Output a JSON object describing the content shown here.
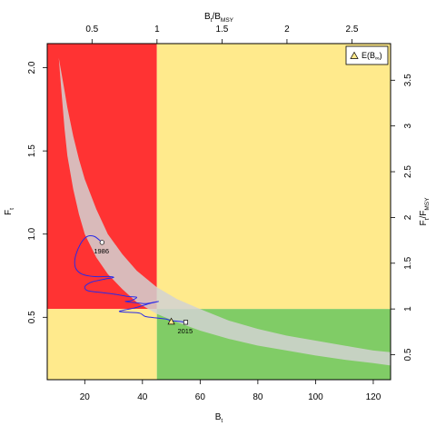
{
  "chart_data": {
    "type": "line",
    "axes": {
      "bottom": {
        "label": "B",
        "label_sub": "t",
        "range": [
          7,
          126
        ],
        "ticks": [
          20,
          40,
          60,
          80,
          100,
          120
        ]
      },
      "left": {
        "label": "F",
        "label_sub": "t",
        "range": [
          0.125,
          2.145
        ],
        "ticks": [
          0.5,
          1.0,
          1.5,
          2.0
        ]
      },
      "top": {
        "label": "B",
        "label_sub": "t",
        "label_mid": "/B",
        "label_sub2": "MSY",
        "scale_factor": 0.0222,
        "ticks": [
          0.5,
          1,
          1.5,
          2,
          2.5
        ]
      },
      "right": {
        "label": "F",
        "label_sub": "t",
        "label_mid": "/F",
        "label_sub2": "MSY",
        "scale_factor": 1.8182,
        "ticks": [
          0.5,
          1,
          1.5,
          2,
          2.5,
          3,
          3.5
        ]
      }
    },
    "reference": {
      "bmsy": 45,
      "fmsy": 0.55
    },
    "zone_colors": {
      "red": "#ff3333",
      "yellow": "#ffea8c",
      "green": "#80cc66"
    },
    "band": {
      "color": "#d2d2d2",
      "x": [
        11,
        12,
        13,
        14,
        16,
        18,
        20,
        24,
        28,
        33,
        38,
        45,
        52,
        60,
        70,
        80,
        90,
        100,
        110,
        120,
        126
      ],
      "lower": [
        2.06,
        1.84,
        1.63,
        1.47,
        1.27,
        1.12,
        1.0,
        0.86,
        0.76,
        0.67,
        0.59,
        0.52,
        0.47,
        0.42,
        0.37,
        0.33,
        0.3,
        0.27,
        0.245,
        0.225,
        0.21
      ],
      "upper": [
        2.06,
        1.96,
        1.86,
        1.76,
        1.59,
        1.45,
        1.33,
        1.15,
        1.0,
        0.88,
        0.78,
        0.68,
        0.61,
        0.55,
        0.48,
        0.43,
        0.39,
        0.36,
        0.33,
        0.3,
        0.29
      ]
    },
    "series": [
      {
        "color": "#2a2ae6",
        "points": [
          [
            26,
            0.95
          ],
          [
            23.5,
            0.985
          ],
          [
            21.5,
            0.99
          ],
          [
            20,
            0.975
          ],
          [
            18.5,
            0.94
          ],
          [
            17,
            0.88
          ],
          [
            16.5,
            0.83
          ],
          [
            17,
            0.79
          ],
          [
            19,
            0.76
          ],
          [
            23,
            0.745
          ],
          [
            28,
            0.745
          ],
          [
            30,
            0.74
          ],
          [
            27,
            0.73
          ],
          [
            23,
            0.715
          ],
          [
            21,
            0.7
          ],
          [
            20,
            0.68
          ],
          [
            21,
            0.66
          ],
          [
            25,
            0.65
          ],
          [
            30,
            0.64
          ],
          [
            35,
            0.625
          ],
          [
            38,
            0.62
          ],
          [
            36,
            0.6
          ],
          [
            34,
            0.595
          ],
          [
            36,
            0.59
          ],
          [
            39,
            0.585
          ],
          [
            41,
            0.582
          ],
          [
            44,
            0.59
          ],
          [
            45.5,
            0.595
          ],
          [
            43,
            0.585
          ],
          [
            40,
            0.57
          ],
          [
            37,
            0.555
          ],
          [
            34,
            0.545
          ],
          [
            32,
            0.535
          ],
          [
            35,
            0.53
          ],
          [
            39,
            0.525
          ],
          [
            41,
            0.505
          ],
          [
            44,
            0.498
          ],
          [
            48,
            0.49
          ],
          [
            50,
            0.48
          ],
          [
            53,
            0.475
          ],
          [
            55,
            0.47
          ]
        ]
      }
    ],
    "annotations": [
      {
        "text": "1986",
        "x": 26,
        "y": 0.95,
        "marker": "circle"
      },
      {
        "text": "2015",
        "x": 55,
        "y": 0.47,
        "marker": "square"
      }
    ],
    "expected_point": {
      "x": 50,
      "y": 0.475,
      "marker": "triangle",
      "color": "#ffea8c"
    },
    "legend": {
      "position": "top-right",
      "label": "E(B",
      "label_sub": "∞",
      "label_end": ")"
    }
  }
}
